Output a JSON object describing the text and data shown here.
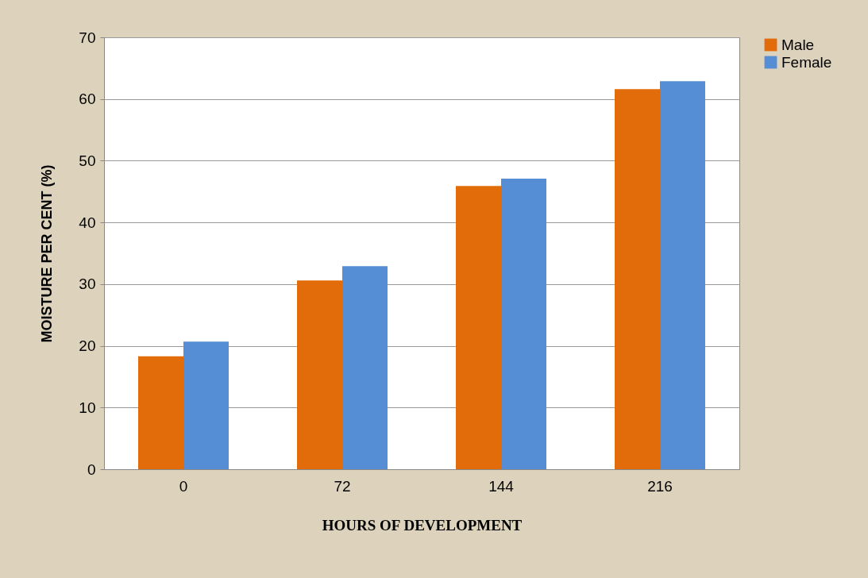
{
  "chart_data": {
    "type": "bar",
    "xlabel": "HOURS OF DEVELOPMENT",
    "ylabel": "MOISTURE PER CENT (%)",
    "categories": [
      "0",
      "72",
      "144",
      "216"
    ],
    "series": [
      {
        "name": "Male",
        "color": "#e36c0a",
        "values": [
          18.3,
          30.6,
          45.9,
          61.6
        ]
      },
      {
        "name": "Female",
        "color": "#558ed5",
        "values": [
          20.7,
          32.9,
          47.1,
          62.9
        ]
      }
    ],
    "ylim": [
      0,
      70
    ],
    "yticks": [
      0,
      10,
      20,
      30,
      40,
      50,
      60,
      70
    ],
    "grid": "y",
    "legend": "right"
  }
}
